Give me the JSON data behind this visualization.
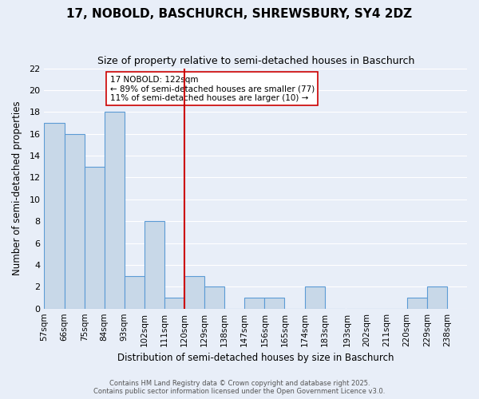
{
  "title": "17, NOBOLD, BASCHURCH, SHREWSBURY, SY4 2DZ",
  "subtitle": "Size of property relative to semi-detached houses in Baschurch",
  "xlabel": "Distribution of semi-detached houses by size in Baschurch",
  "ylabel": "Number of semi-detached properties",
  "bin_edges": [
    57,
    66,
    75,
    84,
    93,
    102,
    111,
    120,
    129,
    138,
    147,
    156,
    165,
    174,
    183,
    193,
    202,
    211,
    220,
    229,
    238
  ],
  "counts": [
    17,
    16,
    13,
    18,
    3,
    8,
    1,
    3,
    2,
    0,
    1,
    1,
    0,
    2,
    0,
    0,
    0,
    0,
    1,
    2
  ],
  "bar_color": "#c8d8e8",
  "bar_edge_color": "#5b9bd5",
  "vline_x": 120,
  "vline_color": "#cc0000",
  "annotation_text": "17 NOBOLD: 122sqm\n← 89% of semi-detached houses are smaller (77)\n11% of semi-detached houses are larger (10) →",
  "annotation_box_color": "#ffffff",
  "annotation_box_edge": "#cc0000",
  "ylim": [
    0,
    22
  ],
  "yticks": [
    0,
    2,
    4,
    6,
    8,
    10,
    12,
    14,
    16,
    18,
    20,
    22
  ],
  "tick_labels": [
    "57sqm",
    "66sqm",
    "75sqm",
    "84sqm",
    "93sqm",
    "102sqm",
    "111sqm",
    "120sqm",
    "129sqm",
    "138sqm",
    "147sqm",
    "156sqm",
    "165sqm",
    "174sqm",
    "183sqm",
    "193sqm",
    "202sqm",
    "211sqm",
    "220sqm",
    "229sqm",
    "238sqm"
  ],
  "bg_color": "#e8eef8",
  "grid_color": "#ffffff",
  "footer_line1": "Contains HM Land Registry data © Crown copyright and database right 2025.",
  "footer_line2": "Contains public sector information licensed under the Open Government Licence v3.0."
}
